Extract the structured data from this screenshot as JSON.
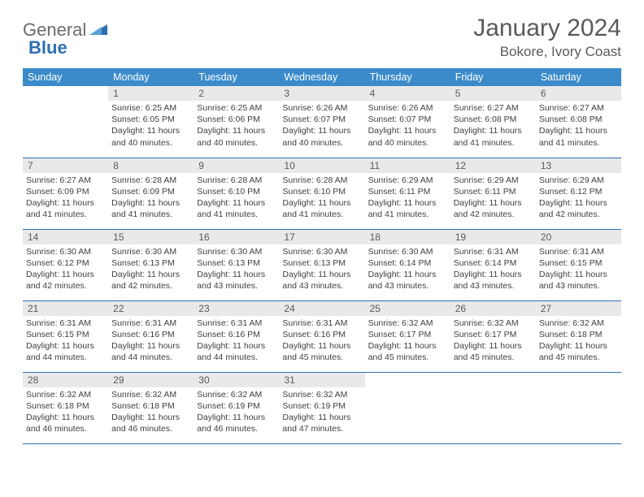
{
  "logo": {
    "text1": "General",
    "text2": "Blue"
  },
  "title": "January 2024",
  "location": "Bokore, Ivory Coast",
  "colors": {
    "header_bg": "#3b8bca",
    "header_fg": "#ffffff",
    "daynum_bg": "#e9e9e9",
    "border": "#2f6fb0",
    "text": "#404040",
    "title_text": "#5a5a5a",
    "logo_gray": "#6b6b6b",
    "logo_blue": "#2f6fb0"
  },
  "weekdays": [
    "Sunday",
    "Monday",
    "Tuesday",
    "Wednesday",
    "Thursday",
    "Friday",
    "Saturday"
  ],
  "start_offset": 1,
  "days": [
    {
      "n": 1,
      "sr": "6:25 AM",
      "ss": "6:05 PM",
      "dl": "11 hours and 40 minutes."
    },
    {
      "n": 2,
      "sr": "6:25 AM",
      "ss": "6:06 PM",
      "dl": "11 hours and 40 minutes."
    },
    {
      "n": 3,
      "sr": "6:26 AM",
      "ss": "6:07 PM",
      "dl": "11 hours and 40 minutes."
    },
    {
      "n": 4,
      "sr": "6:26 AM",
      "ss": "6:07 PM",
      "dl": "11 hours and 40 minutes."
    },
    {
      "n": 5,
      "sr": "6:27 AM",
      "ss": "6:08 PM",
      "dl": "11 hours and 41 minutes."
    },
    {
      "n": 6,
      "sr": "6:27 AM",
      "ss": "6:08 PM",
      "dl": "11 hours and 41 minutes."
    },
    {
      "n": 7,
      "sr": "6:27 AM",
      "ss": "6:09 PM",
      "dl": "11 hours and 41 minutes."
    },
    {
      "n": 8,
      "sr": "6:28 AM",
      "ss": "6:09 PM",
      "dl": "11 hours and 41 minutes."
    },
    {
      "n": 9,
      "sr": "6:28 AM",
      "ss": "6:10 PM",
      "dl": "11 hours and 41 minutes."
    },
    {
      "n": 10,
      "sr": "6:28 AM",
      "ss": "6:10 PM",
      "dl": "11 hours and 41 minutes."
    },
    {
      "n": 11,
      "sr": "6:29 AM",
      "ss": "6:11 PM",
      "dl": "11 hours and 41 minutes."
    },
    {
      "n": 12,
      "sr": "6:29 AM",
      "ss": "6:11 PM",
      "dl": "11 hours and 42 minutes."
    },
    {
      "n": 13,
      "sr": "6:29 AM",
      "ss": "6:12 PM",
      "dl": "11 hours and 42 minutes."
    },
    {
      "n": 14,
      "sr": "6:30 AM",
      "ss": "6:12 PM",
      "dl": "11 hours and 42 minutes."
    },
    {
      "n": 15,
      "sr": "6:30 AM",
      "ss": "6:13 PM",
      "dl": "11 hours and 42 minutes."
    },
    {
      "n": 16,
      "sr": "6:30 AM",
      "ss": "6:13 PM",
      "dl": "11 hours and 43 minutes."
    },
    {
      "n": 17,
      "sr": "6:30 AM",
      "ss": "6:13 PM",
      "dl": "11 hours and 43 minutes."
    },
    {
      "n": 18,
      "sr": "6:30 AM",
      "ss": "6:14 PM",
      "dl": "11 hours and 43 minutes."
    },
    {
      "n": 19,
      "sr": "6:31 AM",
      "ss": "6:14 PM",
      "dl": "11 hours and 43 minutes."
    },
    {
      "n": 20,
      "sr": "6:31 AM",
      "ss": "6:15 PM",
      "dl": "11 hours and 43 minutes."
    },
    {
      "n": 21,
      "sr": "6:31 AM",
      "ss": "6:15 PM",
      "dl": "11 hours and 44 minutes."
    },
    {
      "n": 22,
      "sr": "6:31 AM",
      "ss": "6:16 PM",
      "dl": "11 hours and 44 minutes."
    },
    {
      "n": 23,
      "sr": "6:31 AM",
      "ss": "6:16 PM",
      "dl": "11 hours and 44 minutes."
    },
    {
      "n": 24,
      "sr": "6:31 AM",
      "ss": "6:16 PM",
      "dl": "11 hours and 45 minutes."
    },
    {
      "n": 25,
      "sr": "6:32 AM",
      "ss": "6:17 PM",
      "dl": "11 hours and 45 minutes."
    },
    {
      "n": 26,
      "sr": "6:32 AM",
      "ss": "6:17 PM",
      "dl": "11 hours and 45 minutes."
    },
    {
      "n": 27,
      "sr": "6:32 AM",
      "ss": "6:18 PM",
      "dl": "11 hours and 45 minutes."
    },
    {
      "n": 28,
      "sr": "6:32 AM",
      "ss": "6:18 PM",
      "dl": "11 hours and 46 minutes."
    },
    {
      "n": 29,
      "sr": "6:32 AM",
      "ss": "6:18 PM",
      "dl": "11 hours and 46 minutes."
    },
    {
      "n": 30,
      "sr": "6:32 AM",
      "ss": "6:19 PM",
      "dl": "11 hours and 46 minutes."
    },
    {
      "n": 31,
      "sr": "6:32 AM",
      "ss": "6:19 PM",
      "dl": "11 hours and 47 minutes."
    }
  ],
  "labels": {
    "sunrise": "Sunrise:",
    "sunset": "Sunset:",
    "daylight": "Daylight:"
  }
}
